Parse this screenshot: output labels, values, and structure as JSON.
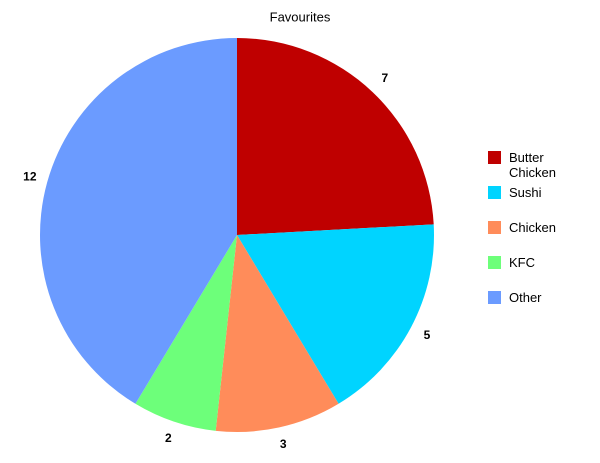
{
  "chart_data": {
    "type": "pie",
    "title": "Favourites",
    "categories": [
      "Butter Chicken",
      "Sushi",
      "Chicken",
      "KFC",
      "Other"
    ],
    "values": [
      7,
      5,
      3,
      2,
      12
    ],
    "colors": [
      "#bf0000",
      "#00d4ff",
      "#ff8c5a",
      "#6dff7a",
      "#6b9bff"
    ],
    "legend": "right"
  }
}
